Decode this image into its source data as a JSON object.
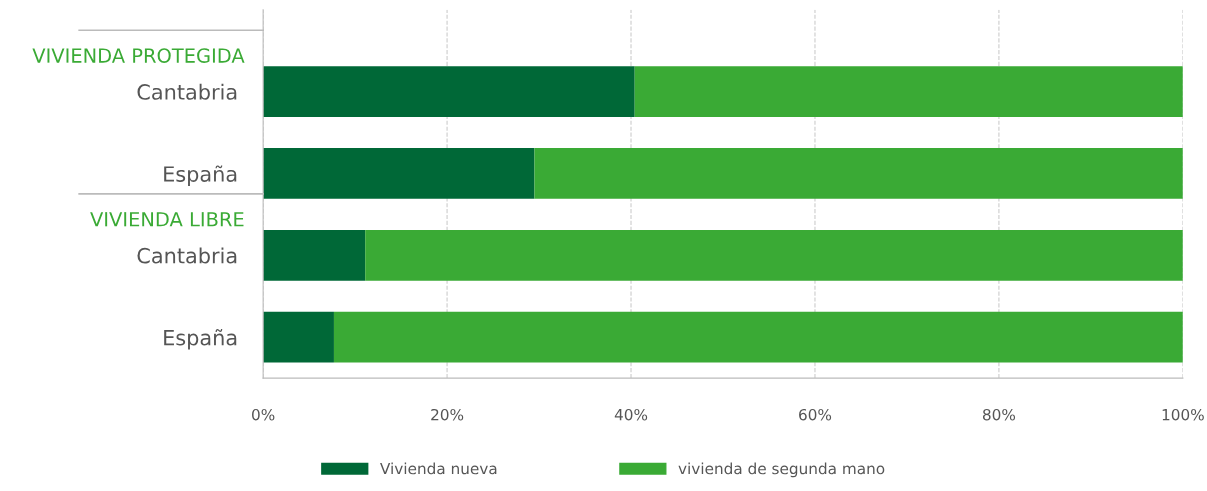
{
  "chart_data": {
    "type": "bar",
    "orientation": "horizontal",
    "stacked": true,
    "categories": [
      "Cantabria",
      "España",
      "Cantabria",
      "España"
    ],
    "series": [
      {
        "name": "Vivienda nueva",
        "color": "#006837",
        "values": [
          40.4,
          29.5,
          11.1,
          7.7
        ]
      },
      {
        "name": "vivienda de segunda mano",
        "color": "#3aaa35",
        "values": [
          59.6,
          70.5,
          88.9,
          92.3
        ]
      }
    ],
    "xlim": [
      0,
      100
    ],
    "xticks": [
      {
        "value": 0,
        "label": "0%"
      },
      {
        "value": 20,
        "label": "20%"
      },
      {
        "value": 40,
        "label": "40%"
      },
      {
        "value": 60,
        "label": "60%"
      },
      {
        "value": 80,
        "label": "80%"
      },
      {
        "value": 100,
        "label": "100%"
      }
    ],
    "grid": "x",
    "legend": "bottom",
    "annotations": [
      "VIVIENDA PROTEGIDA",
      "VIVIENDA LIBRE"
    ]
  }
}
